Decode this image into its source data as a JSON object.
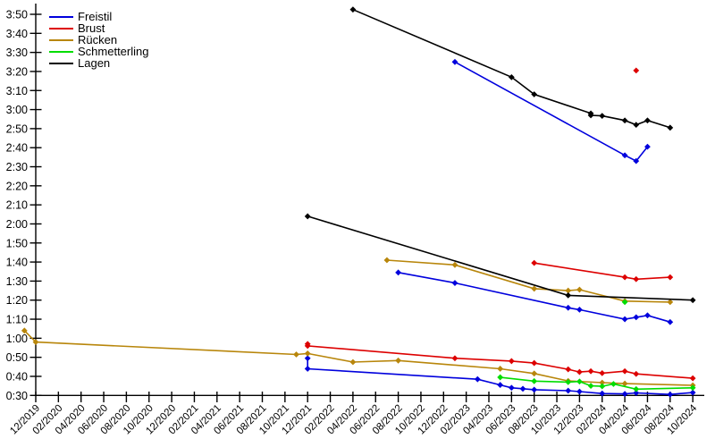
{
  "chart_data": {
    "type": "line",
    "title": "",
    "xlabel": "",
    "ylabel": "",
    "grid": false,
    "legend_position": "top-left",
    "axis_color": "#000000",
    "background_color": "#ffffff",
    "y_axis": {
      "unit": "min:sec",
      "min_seconds": 30,
      "max_seconds": 230,
      "tick_step_seconds": 10,
      "tick_labels": [
        "0:30",
        "0:40",
        "0:50",
        "1:00",
        "1:10",
        "1:20",
        "1:30",
        "1:40",
        "1:50",
        "2:00",
        "2:10",
        "2:20",
        "2:30",
        "2:40",
        "2:50",
        "3:00",
        "3:10",
        "3:20",
        "3:30",
        "3:40",
        "3:50"
      ]
    },
    "x_axis": {
      "unit": "month/year",
      "tick_labels": [
        "12/2019",
        "02/2020",
        "04/2020",
        "06/2020",
        "08/2020",
        "10/2020",
        "12/2020",
        "02/2021",
        "04/2021",
        "06/2021",
        "08/2021",
        "10/2021",
        "12/2021",
        "02/2022",
        "04/2022",
        "06/2022",
        "08/2022",
        "10/2022",
        "12/2022",
        "02/2023",
        "04/2023",
        "06/2023",
        "08/2023",
        "10/2023",
        "12/2023",
        "02/2024",
        "04/2024",
        "06/2024",
        "08/2024",
        "10/2024"
      ]
    },
    "series": [
      {
        "id": "freistil",
        "name": "Freistil",
        "color": "#0000dd",
        "segments": [
          [
            [
              "01/2023",
              205
            ],
            [
              "04/2024",
              156
            ],
            [
              "05/2024",
              153
            ],
            [
              "06/2024",
              160.5
            ]
          ],
          [
            [
              "08/2022",
              94.5
            ],
            [
              "01/2023",
              89
            ],
            [
              "11/2023",
              76
            ],
            [
              "12/2023",
              75
            ],
            [
              "04/2024",
              70
            ],
            [
              "05/2024",
              71
            ],
            [
              "06/2024",
              72
            ],
            [
              "08/2024",
              68.5
            ]
          ],
          [
            [
              "12/2021",
              49.5
            ],
            [
              "12/2021",
              44
            ],
            [
              "03/2023",
              38.5
            ],
            [
              "05/2023",
              35.5
            ],
            [
              "06/2023",
              34
            ],
            [
              "07/2023",
              33.5
            ],
            [
              "08/2023",
              33
            ],
            [
              "11/2023",
              32.5
            ],
            [
              "12/2023",
              32
            ],
            [
              "02/2024",
              31
            ],
            [
              "04/2024",
              30.8
            ],
            [
              "05/2024",
              31.3
            ],
            [
              "08/2024",
              30.5
            ],
            [
              "10/2024",
              31.5
            ]
          ]
        ]
      },
      {
        "id": "brust",
        "name": "Brust",
        "color": "#dd0000",
        "segments": [
          [
            [
              "05/2024",
              200.5
            ]
          ],
          [
            [
              "08/2023",
              99.5
            ],
            [
              "04/2024",
              92
            ],
            [
              "05/2024",
              91
            ],
            [
              "08/2024",
              92
            ]
          ],
          [
            [
              "12/2021",
              57
            ],
            [
              "12/2021",
              56
            ],
            [
              "01/2023",
              49.5
            ],
            [
              "06/2023",
              48
            ],
            [
              "08/2023",
              47
            ],
            [
              "11/2023",
              43.7
            ],
            [
              "12/2023",
              42.3
            ],
            [
              "01/2024",
              42.7
            ],
            [
              "02/2024",
              41.7
            ],
            [
              "04/2024",
              42.7
            ],
            [
              "05/2024",
              41.3
            ],
            [
              "10/2024",
              39
            ]
          ]
        ]
      },
      {
        "id": "ruecken",
        "name": "Rücken",
        "color": "#b8860b",
        "segments": [
          [
            [
              "07/2022",
              101
            ],
            [
              "01/2023",
              98.5
            ],
            [
              "08/2023",
              86
            ],
            [
              "11/2023",
              85
            ],
            [
              "12/2023",
              85.5
            ],
            [
              "04/2024",
              79.5
            ],
            [
              "08/2024",
              79
            ]
          ],
          [
            [
              "11/2019",
              64
            ],
            [
              "12/2019",
              58
            ],
            [
              "11/2021",
              51.5
            ],
            [
              "12/2021",
              52
            ],
            [
              "04/2022",
              47.5
            ],
            [
              "08/2022",
              48.3
            ],
            [
              "05/2023",
              44
            ],
            [
              "08/2023",
              41.5
            ],
            [
              "11/2023",
              37.6
            ],
            [
              "02/2024",
              36.7
            ],
            [
              "04/2024",
              36.2
            ],
            [
              "10/2024",
              35.3
            ]
          ]
        ]
      },
      {
        "id": "schmetterling",
        "name": "Schmetterling",
        "color": "#00dd00",
        "segments": [
          [
            [
              "04/2024",
              79
            ]
          ],
          [
            [
              "05/2023",
              39.5
            ],
            [
              "08/2023",
              37.5
            ],
            [
              "11/2023",
              37
            ],
            [
              "12/2023",
              37.3
            ],
            [
              "01/2024",
              35
            ],
            [
              "02/2024",
              34.8
            ],
            [
              "03/2024",
              36
            ],
            [
              "05/2024",
              33.3
            ],
            [
              "10/2024",
              34
            ]
          ]
        ]
      },
      {
        "id": "lagen",
        "name": "Lagen",
        "color": "#000000",
        "segments": [
          [
            [
              "04/2022",
              232.5
            ],
            [
              "06/2023",
              197
            ],
            [
              "08/2023",
              188
            ],
            [
              "01/2024",
              178
            ],
            [
              "01/2024",
              177
            ],
            [
              "02/2024",
              176.7
            ],
            [
              "04/2024",
              174.3
            ],
            [
              "05/2024",
              172
            ],
            [
              "06/2024",
              174.3
            ],
            [
              "08/2024",
              170.5
            ]
          ],
          [
            [
              "12/2021",
              124
            ],
            [
              "11/2023",
              82.5
            ],
            [
              "10/2024",
              80
            ]
          ]
        ]
      }
    ]
  }
}
